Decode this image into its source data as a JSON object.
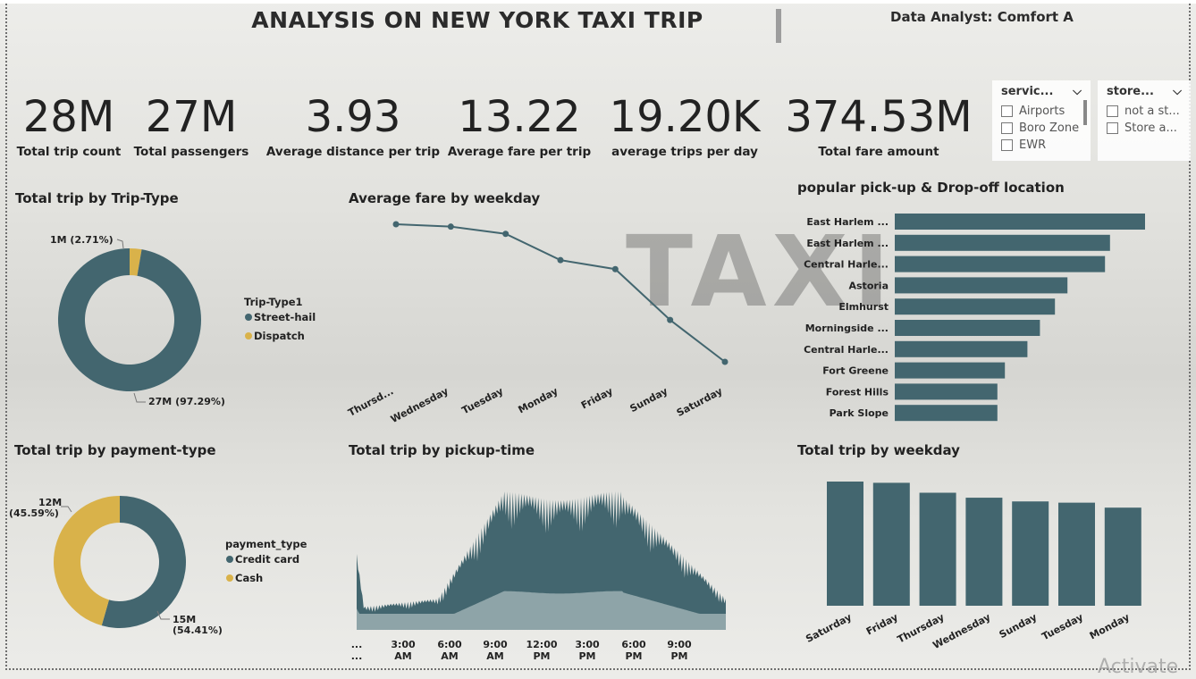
{
  "header": {
    "title": "ANALYSIS ON NEW YORK TAXI TRIP",
    "author": "Data Analyst: Comfort A",
    "background_text": "TAXI"
  },
  "colors": {
    "teal": "#43666f",
    "gold": "#d9b24a",
    "area_light": "#8ea4a8"
  },
  "kpis": [
    {
      "value": "28M",
      "label": "Total trip count"
    },
    {
      "value": "27M",
      "label": "Total passengers"
    },
    {
      "value": "3.93",
      "label": "Average distance per trip"
    },
    {
      "value": "13.22",
      "label": "Average fare per trip"
    },
    {
      "value": "19.20K",
      "label": "average trips per day"
    },
    {
      "value": "374.53M",
      "label": "Total fare amount"
    }
  ],
  "slicers": [
    {
      "title": "servic...",
      "icon": "chevron-down-icon",
      "options": [
        "Airports",
        "Boro Zone",
        "EWR"
      ]
    },
    {
      "title": "store...",
      "icon": "chevron-down-icon",
      "options": [
        "not a st...",
        "Store a..."
      ]
    }
  ],
  "watermark": "Activate",
  "chart_data": [
    {
      "type": "pie",
      "title": "Total trip by Trip-Type",
      "legend_title": "Trip-Type1",
      "slices": [
        {
          "name": "Street-hail",
          "value": 97.29,
          "label": "27M (97.29%)",
          "color": "#43666f"
        },
        {
          "name": "Dispatch",
          "value": 2.71,
          "label": "1M (2.71%)",
          "color": "#d9b24a"
        }
      ]
    },
    {
      "type": "line",
      "title": "Average fare by weekday",
      "categories": [
        "Thursd...",
        "Wednesday",
        "Tuesday",
        "Monday",
        "Friday",
        "Sunday",
        "Saturday"
      ],
      "values": [
        13.5,
        13.46,
        13.34,
        12.9,
        12.75,
        11.9,
        11.2
      ],
      "ylim": [
        11.2,
        13.5
      ]
    },
    {
      "type": "bar",
      "orientation": "horizontal",
      "title": "popular pick-up & Drop-off location",
      "categories": [
        "East Harlem ...",
        "East Harlem ...",
        "Central Harle...",
        "Astoria",
        "Elmhurst",
        "Morningside ...",
        "Central Harle...",
        "Fort Greene",
        "Forest Hills",
        "Park Slope"
      ],
      "values": [
        100,
        86,
        84,
        69,
        64,
        58,
        53,
        44,
        41,
        41
      ]
    },
    {
      "type": "pie",
      "title": "Total trip by payment-type",
      "legend_title": "payment_type",
      "slices": [
        {
          "name": "Credit card",
          "value": 54.41,
          "label": [
            "15M",
            "(54.41%)"
          ],
          "color": "#43666f"
        },
        {
          "name": "Cash",
          "value": 45.59,
          "label": [
            "12M",
            "(45.59%)"
          ],
          "color": "#d9b24a"
        }
      ]
    },
    {
      "type": "area",
      "title": "Total trip by pickup-time",
      "x_ticks": [
        [
          "...",
          "..."
        ],
        [
          "3:00",
          "AM"
        ],
        [
          "6:00",
          "AM"
        ],
        [
          "9:00",
          "AM"
        ],
        [
          "12:00",
          "PM"
        ],
        [
          "3:00",
          "PM"
        ],
        [
          "6:00",
          "PM"
        ],
        [
          "9:00",
          "PM"
        ]
      ]
    },
    {
      "type": "bar",
      "title": "Total trip by weekday",
      "categories": [
        "Saturday",
        "Friday",
        "Thursday",
        "Wednesday",
        "Sunday",
        "Tuesday",
        "Monday"
      ],
      "values": [
        100,
        99,
        91,
        87,
        84,
        83,
        79
      ]
    }
  ]
}
